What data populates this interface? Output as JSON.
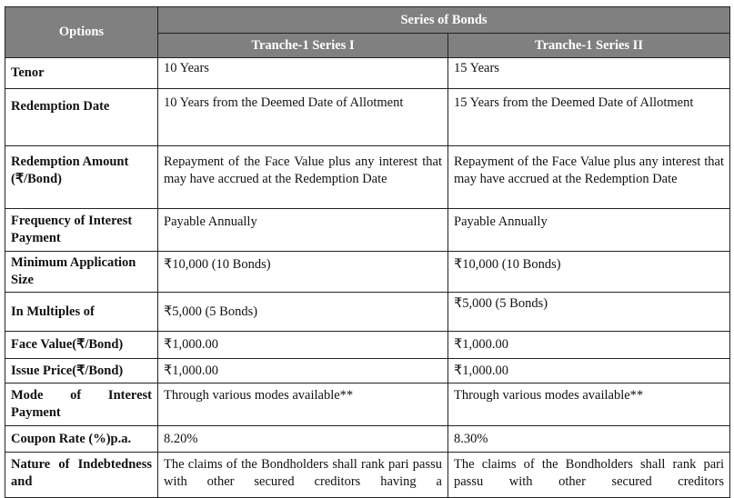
{
  "header": {
    "options": "Options",
    "series_of_bonds": "Series of Bonds",
    "series": [
      "Tranche-1 Series I",
      "Tranche-1 Series II"
    ]
  },
  "rows": [
    {
      "label": "Tenor",
      "s1": "10 Years",
      "s2": "15 Years"
    },
    {
      "label": "Redemption Date",
      "s1": "10 Years from the Deemed Date of Allotment",
      "s2": "15 Years from the Deemed Date of Allotment"
    },
    {
      "label": "Redemption Amount (₹/Bond)",
      "s1": "Repayment of the Face Value plus any interest that may have accrued at the Redemption Date",
      "s2": "Repayment of the Face Value plus any interest that may have accrued at the Redemption Date"
    },
    {
      "label": "Frequency of Interest Payment",
      "s1": "Payable Annually",
      "s2": "Payable Annually"
    },
    {
      "label": "Minimum Application Size",
      "s1": "₹10,000 (10 Bonds)",
      "s2": "₹10,000 (10 Bonds)"
    },
    {
      "label": "In Multiples of",
      "s1": "₹5,000 (5 Bonds)",
      "s2": "₹5,000 (5 Bonds)"
    },
    {
      "label": "Face Value(₹/Bond)",
      "s1": "₹1,000.00",
      "s2": "₹1,000.00"
    },
    {
      "label": "Issue Price(₹/Bond)",
      "s1": "₹1,000.00",
      "s2": "₹1,000.00"
    },
    {
      "label": "Mode of Interest Payment",
      "s1": "Through various modes available**",
      "s2": "Through various modes available**"
    },
    {
      "label": "Coupon Rate (%)p.a.",
      "s1": "8.20%",
      "s2": "8.30%"
    },
    {
      "label": "Nature of Indebtedness and",
      "s1": "The claims of the Bondholders shall rank pari passu with other secured creditors having a",
      "s2": "The claims of the Bondholders shall rank pari passu with other secured creditors"
    }
  ]
}
